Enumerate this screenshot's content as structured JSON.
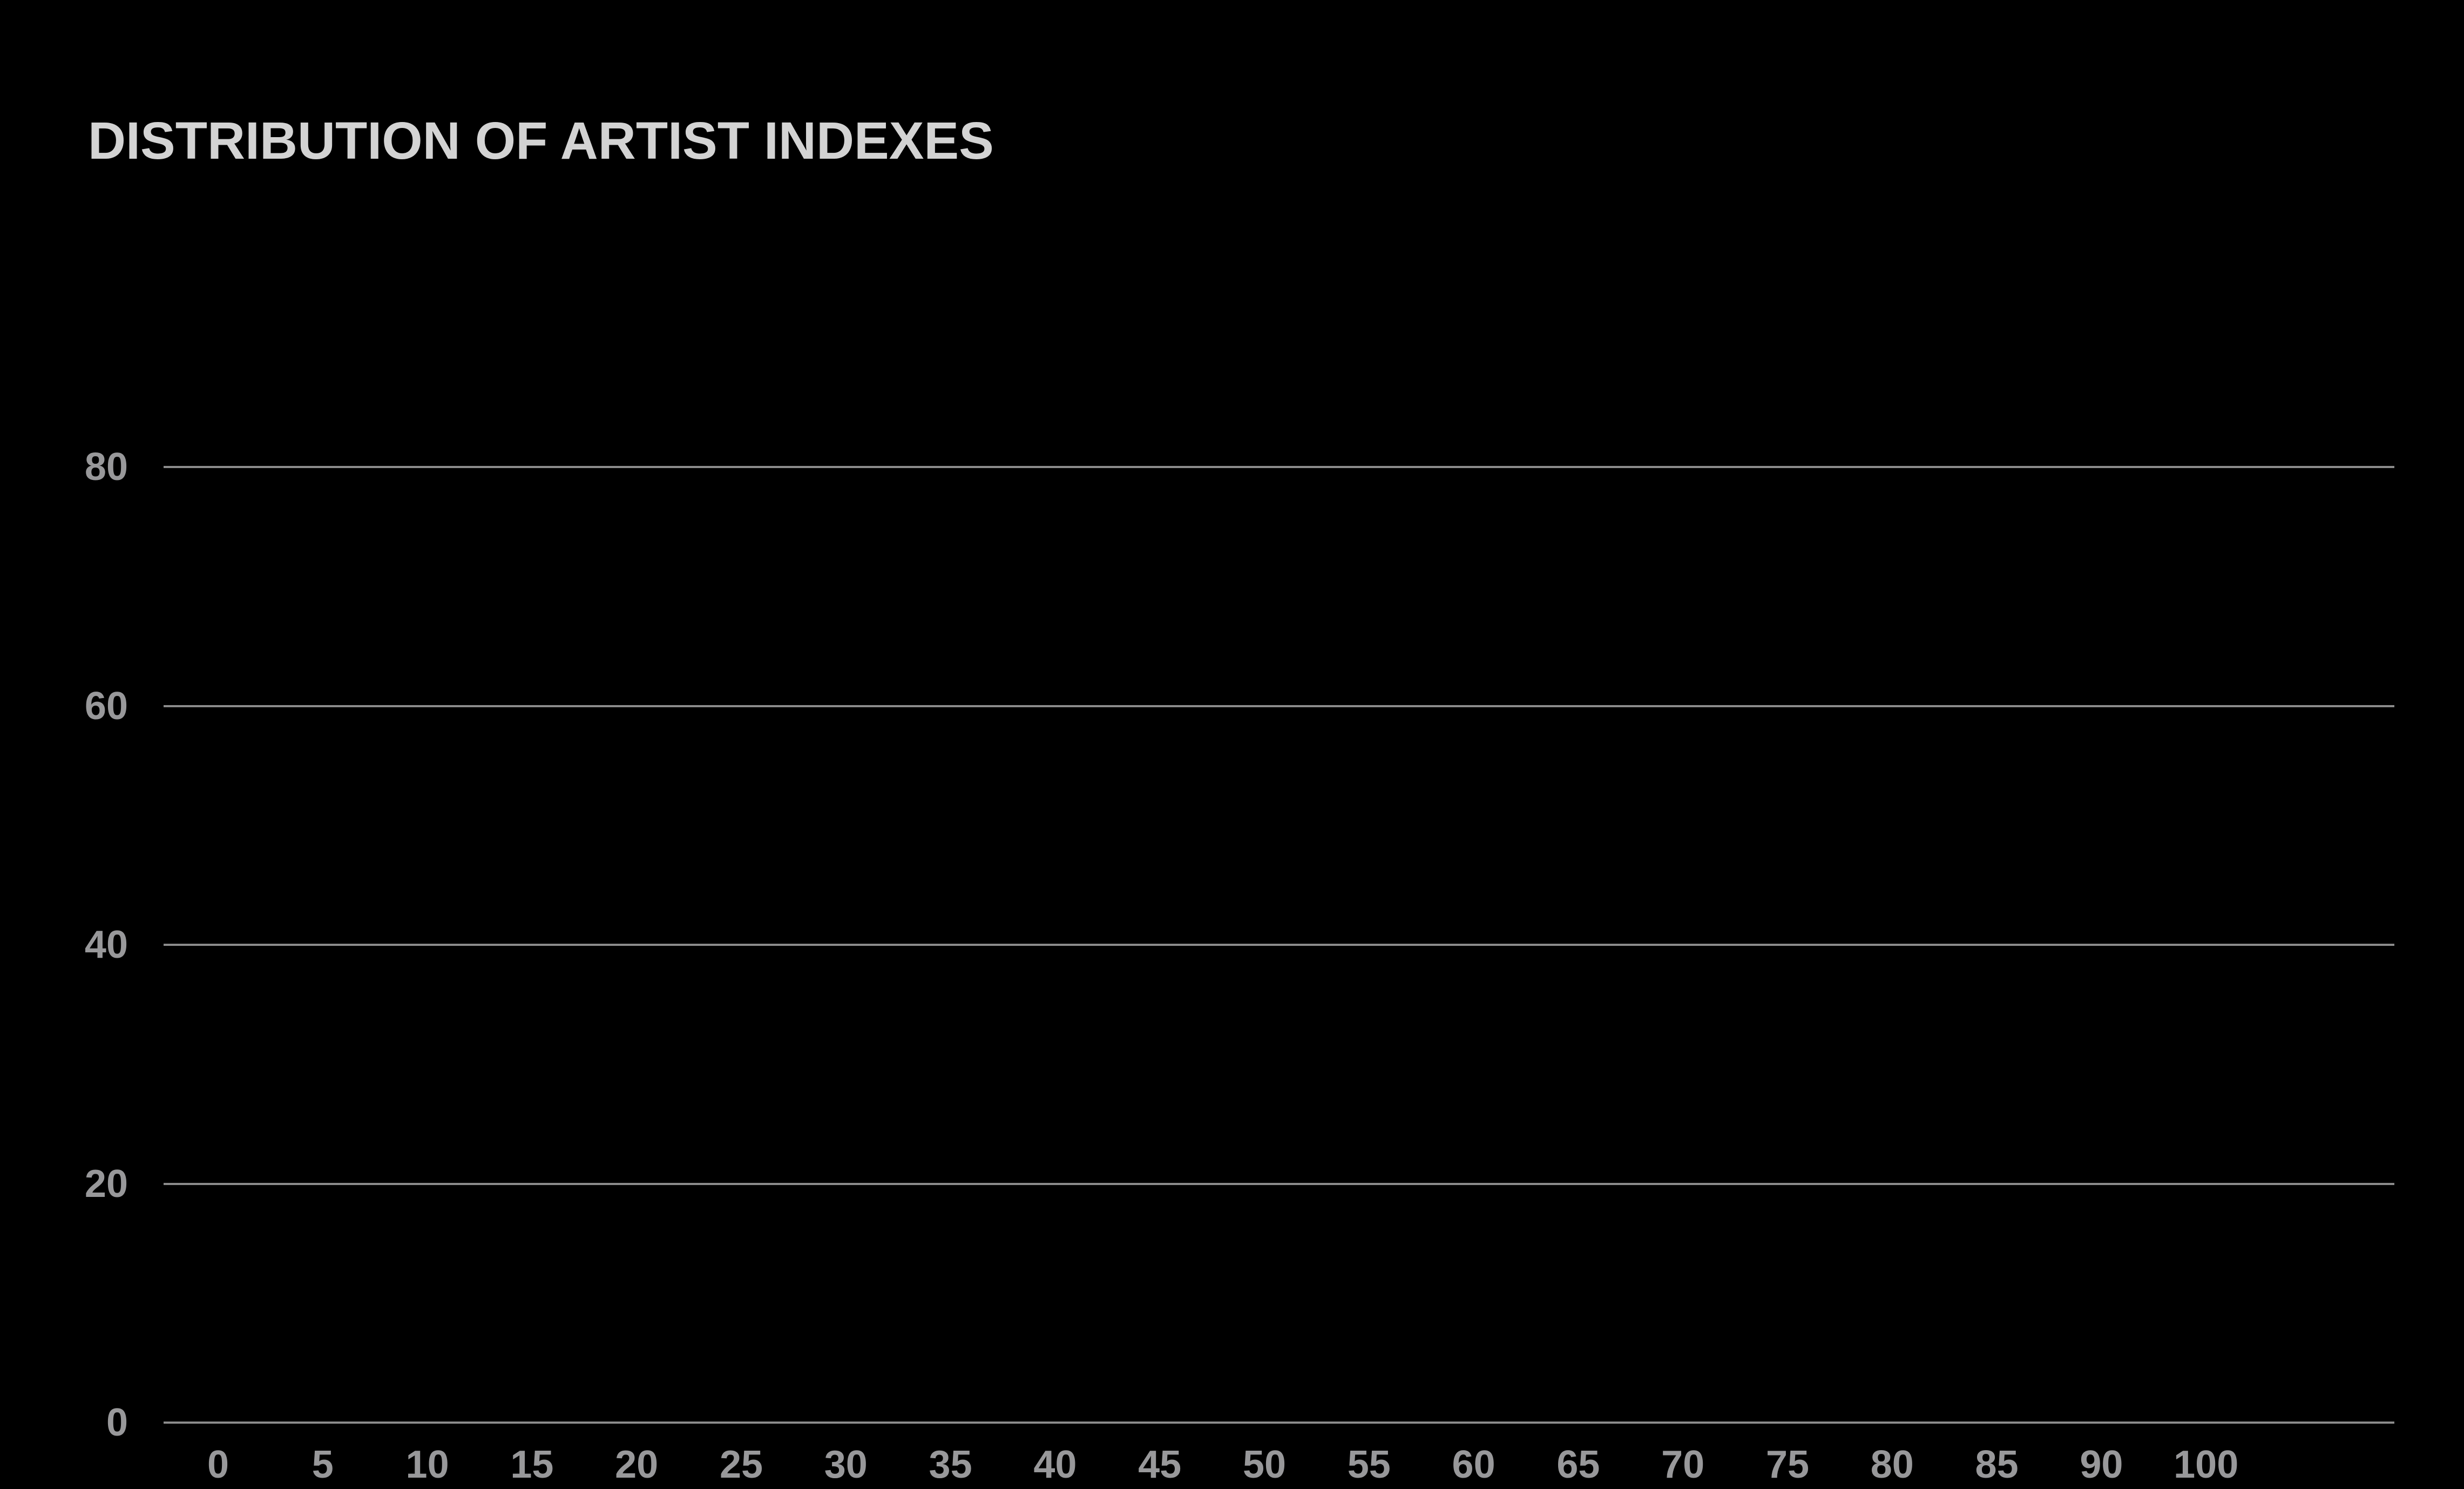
{
  "page": {
    "background": "#000000"
  },
  "chart_data": {
    "type": "bar",
    "title": "DISTRIBUTION OF ARTIST INDEXES",
    "categories": [
      "0",
      "5",
      "10",
      "15",
      "20",
      "25",
      "30",
      "35",
      "40",
      "45",
      "50",
      "55",
      "60",
      "65",
      "70",
      "75",
      "80",
      "85",
      "90",
      "100"
    ],
    "values": [
      0,
      0,
      0,
      0,
      0,
      0,
      0,
      0,
      0,
      0,
      0,
      0,
      0,
      0,
      0,
      0,
      0,
      0,
      0,
      0
    ],
    "xlabel": "",
    "ylabel": "",
    "ylim": [
      0,
      80
    ],
    "y_ticks": [
      0,
      20,
      40,
      60,
      80
    ],
    "grid": true,
    "legend_position": "none",
    "colors": {
      "background": "#000000",
      "title": "#d3d3d3",
      "axis_labels": "#98989a",
      "gridlines": "#8b8b8b"
    }
  }
}
